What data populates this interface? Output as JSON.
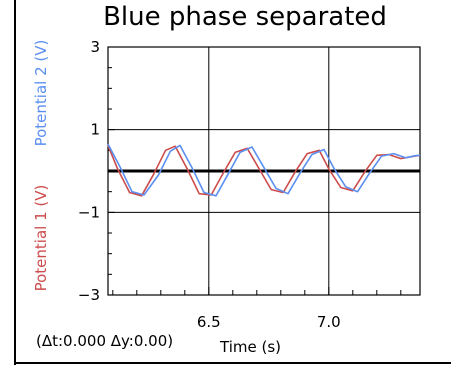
{
  "chart_data": {
    "type": "line",
    "title": "Blue phase separated",
    "xlabel": "Time (s)",
    "xlim": [
      6.08,
      7.38
    ],
    "ylim": [
      -3,
      3
    ],
    "x_ticks": [
      "6.5",
      "7.0"
    ],
    "y_ticks": [
      "3",
      "1",
      "−1",
      "−3"
    ],
    "grid": true,
    "y_axis_labels": [
      {
        "text": "Potential 2 (V)",
        "color": "#5b8ff0"
      },
      {
        "text": "Potential 1 (V)",
        "color": "#cc4c4c"
      }
    ],
    "series": [
      {
        "name": "Potential 1 (V)",
        "color": "#cc4c4c",
        "x": [
          6.08,
          6.12,
          6.17,
          6.22,
          6.27,
          6.32,
          6.36,
          6.41,
          6.46,
          6.51,
          6.56,
          6.61,
          6.66,
          6.71,
          6.76,
          6.81,
          6.86,
          6.91,
          6.96,
          7.0,
          7.05,
          7.1,
          7.15,
          7.2,
          7.25,
          7.3,
          7.35,
          7.38
        ],
        "y": [
          0.62,
          0.05,
          -0.52,
          -0.6,
          -0.08,
          0.5,
          0.6,
          0.05,
          -0.55,
          -0.58,
          -0.05,
          0.45,
          0.55,
          0.05,
          -0.45,
          -0.52,
          -0.02,
          0.42,
          0.5,
          0.05,
          -0.4,
          -0.48,
          -0.02,
          0.38,
          0.4,
          0.3,
          0.35,
          0.38
        ]
      },
      {
        "name": "Potential 2 (V)",
        "color": "#5b8ff0",
        "x": [
          6.08,
          6.13,
          6.18,
          6.23,
          6.29,
          6.34,
          6.38,
          6.43,
          6.48,
          6.53,
          6.58,
          6.63,
          6.68,
          6.73,
          6.78,
          6.83,
          6.88,
          6.93,
          6.98,
          7.02,
          7.07,
          7.12,
          7.17,
          7.22,
          7.27,
          7.32,
          7.36,
          7.38
        ],
        "y": [
          0.65,
          0.1,
          -0.5,
          -0.58,
          -0.1,
          0.48,
          0.62,
          0.08,
          -0.52,
          -0.6,
          -0.08,
          0.45,
          0.58,
          0.08,
          -0.42,
          -0.55,
          -0.05,
          0.4,
          0.52,
          0.08,
          -0.38,
          -0.5,
          -0.05,
          0.36,
          0.42,
          0.32,
          0.37,
          0.38
        ]
      }
    ],
    "reference_line": {
      "y": 0,
      "color": "#000000"
    }
  },
  "readout": "(Δt:0.000 Δy:0.00)"
}
